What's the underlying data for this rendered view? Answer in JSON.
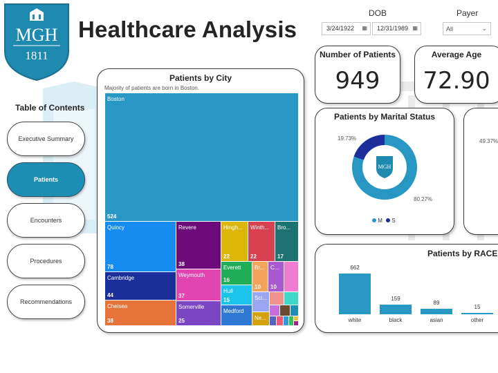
{
  "header": {
    "logo_text": "MGH",
    "logo_year": "1811",
    "title": "Healthcare Analysis"
  },
  "filters": {
    "dob_label": "DOB",
    "dob_start": "3/24/1922",
    "dob_end": "12/31/1989",
    "payer_label": "Payer",
    "payer_value": "All"
  },
  "kpis": {
    "patients_label": "Number of Patients",
    "patients_value": "949",
    "age_label": "Average Age",
    "age_value": "72.90"
  },
  "toc": {
    "title": "Table of Contents",
    "items": [
      {
        "label": "Executive Summary",
        "active": false
      },
      {
        "label": "Patients",
        "active": true
      },
      {
        "label": "Encounters",
        "active": false
      },
      {
        "label": "Procedures",
        "active": false
      },
      {
        "label": "Recommendations",
        "active": false
      }
    ]
  },
  "city_chart": {
    "title": "Patients by City",
    "subtitle": "Majority of patients are born in Boston.",
    "cells": [
      {
        "name": "Boston",
        "value": "524",
        "color": "#2997c4"
      },
      {
        "name": "Quincy",
        "value": "78",
        "color": "#168cf0"
      },
      {
        "name": "Cambridge",
        "value": "44",
        "color": "#1b2e9a"
      },
      {
        "name": "Chelsea",
        "value": "38",
        "color": "#e6743a"
      },
      {
        "name": "Revere",
        "value": "38",
        "color": "#6c0a79"
      },
      {
        "name": "Weymouth",
        "value": "37",
        "color": "#e244b1"
      },
      {
        "name": "Somerville",
        "value": "25",
        "color": "#7a46c4"
      },
      {
        "name": "Hingh...",
        "value": "22",
        "color": "#dcb60b"
      },
      {
        "name": "Winth...",
        "value": "22",
        "color": "#d6404f"
      },
      {
        "name": "Bro...",
        "value": "17",
        "color": "#1d7272"
      },
      {
        "name": "Everett",
        "value": "16",
        "color": "#1fae57"
      },
      {
        "name": "Br...",
        "value": "10",
        "color": "#f4a35c"
      },
      {
        "name": "C...",
        "value": "10",
        "color": "#a85ad0"
      },
      {
        "name": "Hull",
        "value": "15",
        "color": "#1cc4ec"
      },
      {
        "name": "Sci...",
        "value": "",
        "color": "#9aa5f4"
      },
      {
        "name": "Medford",
        "value": "",
        "color": "#2e78d4"
      },
      {
        "name": "Ne...",
        "value": "",
        "color": "#d4a10c"
      },
      {
        "name": "",
        "value": "",
        "color": "#ef7bd2"
      },
      {
        "name": "",
        "value": "",
        "color": "#f1918c"
      },
      {
        "name": "",
        "value": "",
        "color": "#3fd7c7"
      },
      {
        "name": "",
        "value": "",
        "color": "#c86ddc"
      },
      {
        "name": "",
        "value": "",
        "color": "#6a4a2f"
      },
      {
        "name": "",
        "value": "",
        "color": "#1e8fb4"
      },
      {
        "name": "",
        "value": "",
        "color": "#5561c8"
      },
      {
        "name": "",
        "value": "",
        "color": "#ef5a7c"
      },
      {
        "name": "",
        "value": "",
        "color": "#2f9ed8"
      },
      {
        "name": "",
        "value": "",
        "color": "#3cba5c"
      },
      {
        "name": "",
        "value": "",
        "color": "#e8c43c"
      },
      {
        "name": "",
        "value": "",
        "color": "#a02090"
      }
    ]
  },
  "marital_chart": {
    "title": "Patients by Marital Status",
    "pct_s": "19.73%",
    "pct_m": "80.27%",
    "legend_m": "M",
    "legend_s": "S",
    "color_m": "#2997c4",
    "color_s": "#1b2e9a",
    "center_logo": "MGH"
  },
  "partial_card": {
    "pct": "49.37%"
  },
  "chart_data": {
    "type": "bar",
    "title": "Patients by RACE",
    "categories": [
      "white",
      "black",
      "asian",
      "other"
    ],
    "values": [
      662,
      159,
      89,
      15
    ],
    "xlabel": "",
    "ylabel": "",
    "bar_color": "#2997c4"
  }
}
